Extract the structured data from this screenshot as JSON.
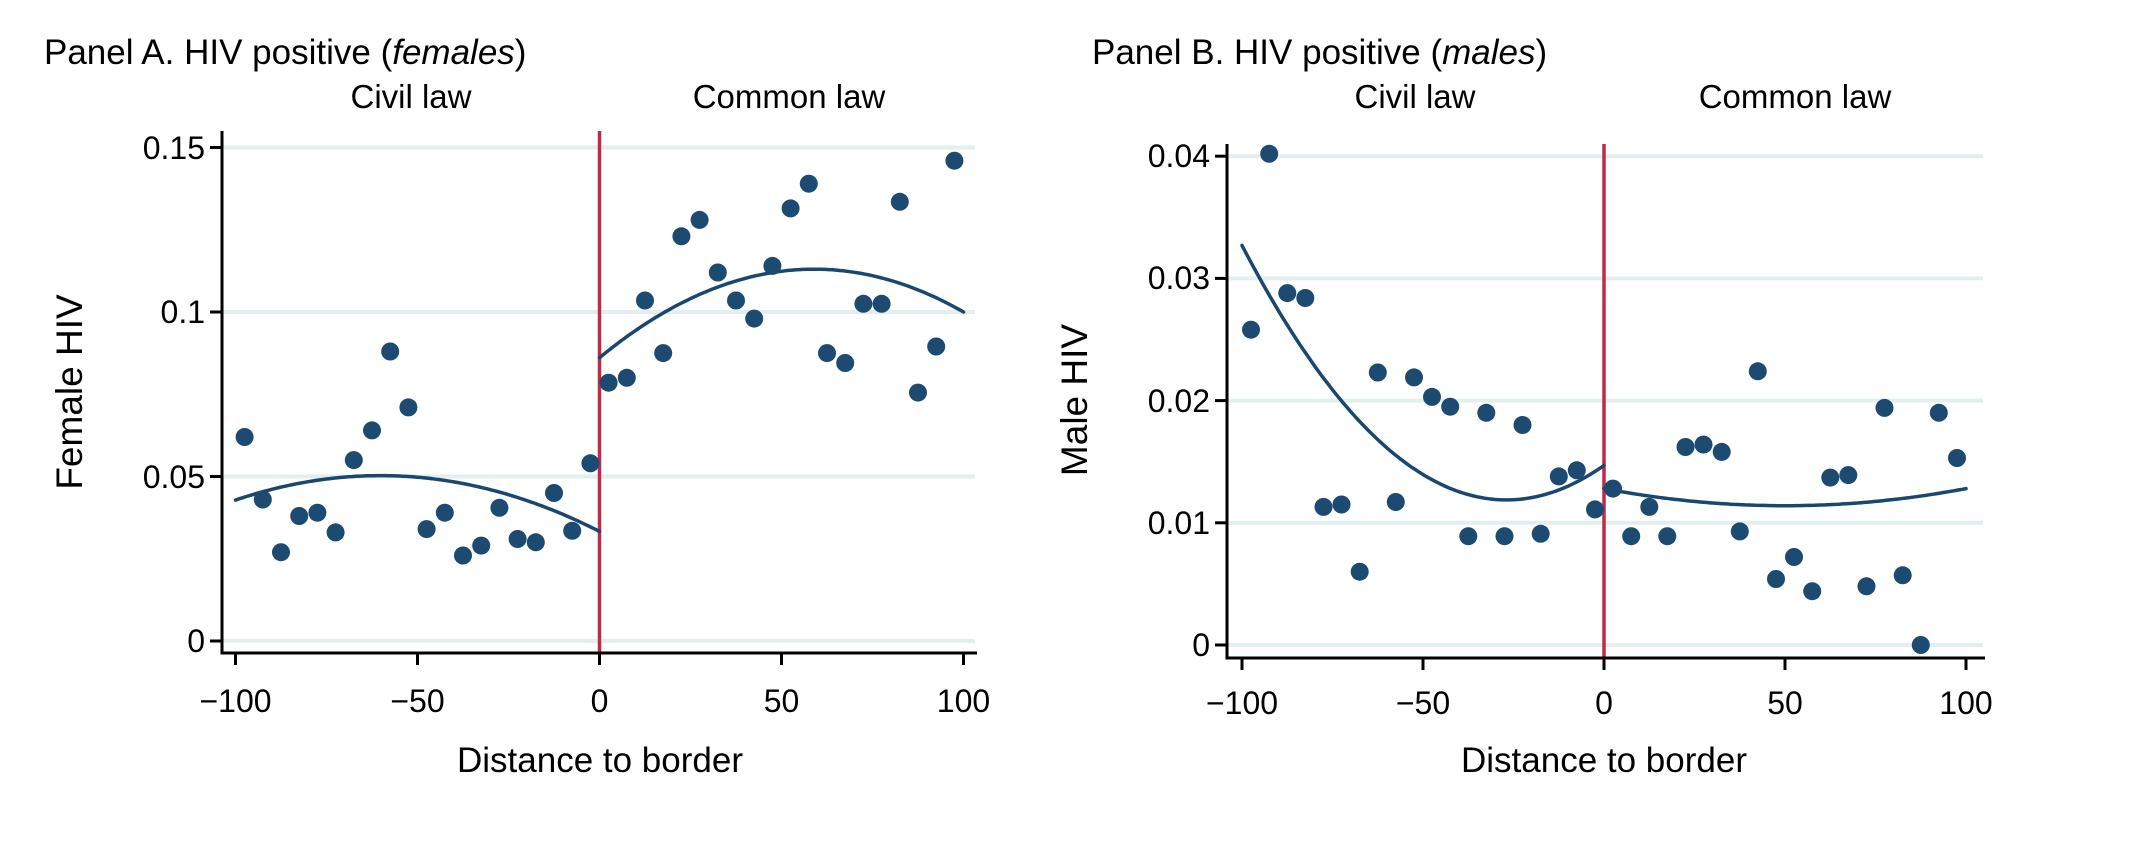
{
  "figure": {
    "background": "#ffffff",
    "colors": {
      "dot": "#1c4a70",
      "fit_line": "#1a476f",
      "cutoff_line": "#c02a45",
      "gridline": "#e3efef",
      "axis": "#000000",
      "text": "#000000"
    },
    "panels": [
      {
        "id": "A",
        "title_prefix": "Panel A. HIV positive (",
        "title_italic": "females",
        "title_suffix": ")",
        "left_region_label": "Civil law",
        "right_region_label": "Common law",
        "ylabel": "Female HIV",
        "xlabel": "Distance to border",
        "chart_data": {
          "type": "scatter",
          "title": "Panel A. HIV positive (females)",
          "xlabel": "Distance to border",
          "ylabel": "Female HIV",
          "x_range": [
            -103,
            103
          ],
          "y_range": [
            -0.004,
            0.152
          ],
          "grid": "horizontal",
          "cutoff_x": 0,
          "xticks": [
            {
              "value": -100,
              "label": "−100"
            },
            {
              "value": -50,
              "label": "−50"
            },
            {
              "value": 0,
              "label": "0"
            },
            {
              "value": 50,
              "label": "50"
            },
            {
              "value": 100,
              "label": "100"
            }
          ],
          "yticks": [
            {
              "value": 0,
              "label": "0"
            },
            {
              "value": 0.05,
              "label": "0.05"
            },
            {
              "value": 0.1,
              "label": "0.1"
            },
            {
              "value": 0.15,
              "label": "0.15"
            }
          ],
          "series": [
            {
              "name": "Civil law bin means",
              "points": [
                [
                  -97.5,
                  0.062
                ],
                [
                  -92.5,
                  0.043
                ],
                [
                  -87.5,
                  0.027
                ],
                [
                  -82.5,
                  0.038
                ],
                [
                  -77.5,
                  0.039
                ],
                [
                  -72.5,
                  0.033
                ],
                [
                  -67.5,
                  0.055
                ],
                [
                  -62.5,
                  0.064
                ],
                [
                  -57.5,
                  0.088
                ],
                [
                  -52.5,
                  0.071
                ],
                [
                  -47.5,
                  0.034
                ],
                [
                  -42.5,
                  0.039
                ],
                [
                  -37.5,
                  0.026
                ],
                [
                  -32.5,
                  0.029
                ],
                [
                  -27.5,
                  0.0405
                ],
                [
                  -22.5,
                  0.031
                ],
                [
                  -17.5,
                  0.03
                ],
                [
                  -12.5,
                  0.045
                ],
                [
                  -7.5,
                  0.0335
                ],
                [
                  -2.5,
                  0.054
                ]
              ]
            },
            {
              "name": "Common law bin means",
              "points": [
                [
                  2.5,
                  0.0785
                ],
                [
                  7.5,
                  0.08
                ],
                [
                  12.5,
                  0.1035
                ],
                [
                  17.5,
                  0.0875
                ],
                [
                  22.5,
                  0.123
                ],
                [
                  27.5,
                  0.128
                ],
                [
                  32.5,
                  0.112
                ],
                [
                  37.5,
                  0.1035
                ],
                [
                  42.5,
                  0.098
                ],
                [
                  47.5,
                  0.114
                ],
                [
                  52.5,
                  0.1315
                ],
                [
                  57.5,
                  0.139
                ],
                [
                  62.5,
                  0.0875
                ],
                [
                  67.5,
                  0.0845
                ],
                [
                  72.5,
                  0.1025
                ],
                [
                  77.5,
                  0.1025
                ],
                [
                  82.5,
                  0.1335
                ],
                [
                  87.5,
                  0.0755
                ],
                [
                  92.5,
                  0.0895
                ],
                [
                  97.5,
                  0.146
                ]
              ]
            }
          ],
          "fits": [
            {
              "name": "Civil law quadratic fit",
              "domain": [
                -100,
                0
              ],
              "coef": [
                -4.686e-06,
                -0.000564,
                0.0333
              ]
            },
            {
              "name": "Common law quadratic fit",
              "domain": [
                0,
                100
              ],
              "coef": [
                -7.733e-06,
                0.0009123,
                0.0861
              ]
            }
          ]
        }
      },
      {
        "id": "B",
        "title_prefix": "Panel B. HIV positive (",
        "title_italic": "males",
        "title_suffix": ")",
        "left_region_label": "Civil law",
        "right_region_label": "Common law",
        "ylabel": "Male HIV",
        "xlabel": "Distance to border",
        "chart_data": {
          "type": "scatter",
          "title": "Panel B. HIV positive (males)",
          "xlabel": "Distance to border",
          "ylabel": "Male HIV",
          "x_range": [
            -103,
            103
          ],
          "y_range": [
            -0.001,
            0.041
          ],
          "grid": "horizontal",
          "cutoff_x": 0,
          "xticks": [
            {
              "value": -100,
              "label": "−100"
            },
            {
              "value": -50,
              "label": "−50"
            },
            {
              "value": 0,
              "label": "0"
            },
            {
              "value": 50,
              "label": "50"
            },
            {
              "value": 100,
              "label": "100"
            }
          ],
          "yticks": [
            {
              "value": 0,
              "label": "0"
            },
            {
              "value": 0.01,
              "label": "0.01"
            },
            {
              "value": 0.02,
              "label": "0.02"
            },
            {
              "value": 0.03,
              "label": "0.03"
            },
            {
              "value": 0.04,
              "label": "0.04"
            }
          ],
          "series": [
            {
              "name": "Civil law bin means",
              "points": [
                [
                  -97.5,
                  0.0258
                ],
                [
                  -92.5,
                  0.0402
                ],
                [
                  -87.5,
                  0.0288
                ],
                [
                  -82.5,
                  0.0284
                ],
                [
                  -77.5,
                  0.0113
                ],
                [
                  -72.5,
                  0.0115
                ],
                [
                  -67.5,
                  0.006
                ],
                [
                  -62.5,
                  0.0223
                ],
                [
                  -57.5,
                  0.0117
                ],
                [
                  -52.5,
                  0.0219
                ],
                [
                  -47.5,
                  0.0203
                ],
                [
                  -42.5,
                  0.0195
                ],
                [
                  -37.5,
                  0.0089
                ],
                [
                  -32.5,
                  0.019
                ],
                [
                  -27.5,
                  0.0089
                ],
                [
                  -22.5,
                  0.018
                ],
                [
                  -17.5,
                  0.0091
                ],
                [
                  -12.5,
                  0.0138
                ],
                [
                  -7.5,
                  0.0143
                ],
                [
                  -2.5,
                  0.0111
                ]
              ]
            },
            {
              "name": "Common law bin means",
              "points": [
                [
                  2.5,
                  0.0128
                ],
                [
                  7.5,
                  0.0089
                ],
                [
                  12.5,
                  0.0113
                ],
                [
                  17.5,
                  0.0089
                ],
                [
                  22.5,
                  0.0162
                ],
                [
                  27.5,
                  0.0164
                ],
                [
                  32.5,
                  0.0158
                ],
                [
                  37.5,
                  0.0093
                ],
                [
                  42.5,
                  0.0224
                ],
                [
                  47.5,
                  0.0054
                ],
                [
                  52.5,
                  0.0072
                ],
                [
                  57.5,
                  0.0044
                ],
                [
                  62.5,
                  0.0137
                ],
                [
                  67.5,
                  0.0139
                ],
                [
                  72.5,
                  0.0048
                ],
                [
                  77.5,
                  0.0194
                ],
                [
                  82.5,
                  0.0057
                ],
                [
                  87.5,
                  0.0
                ],
                [
                  92.5,
                  0.019
                ],
                [
                  97.5,
                  0.0153
                ]
              ]
            }
          ],
          "fits": [
            {
              "name": "Civil law quadratic fit",
              "domain": [
                -100,
                0
              ],
              "coef": [
                3.9e-06,
                0.00021,
                0.0147
              ]
            },
            {
              "name": "Common law quadratic fit",
              "domain": [
                0,
                100
              ],
              "coef": [
                5.6e-07,
                -5.6e-05,
                0.0128
              ]
            }
          ]
        }
      }
    ]
  }
}
